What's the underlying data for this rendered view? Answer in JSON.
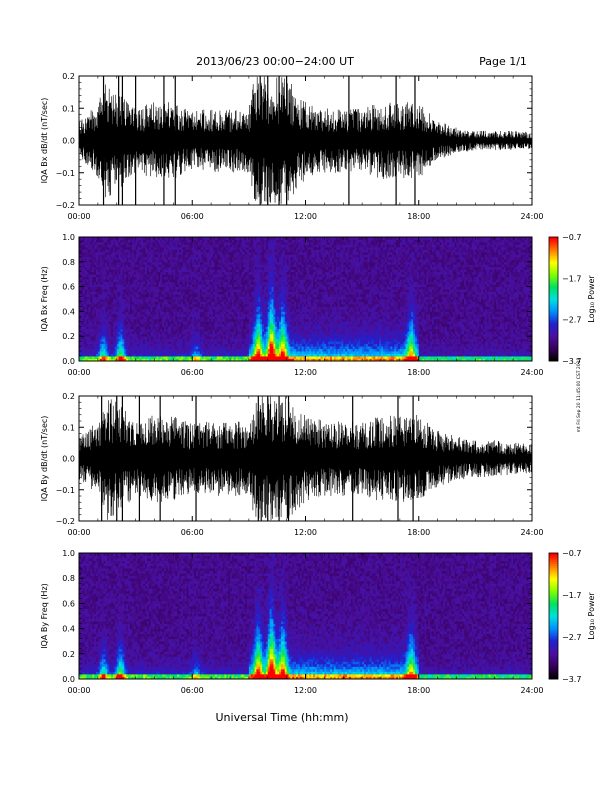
{
  "header": {
    "title": "2013/06/23  00:00−24:00 UT",
    "page_label": "Page 1/1"
  },
  "footer": {
    "xlabel": "Universal Time (hh:mm)",
    "side_stamp": "mt Fri Sep 20 11:45:00 CST 2019"
  },
  "colors": {
    "trace": "#000000",
    "background": "#ffffff",
    "spectrogram_colormap": [
      "#000000",
      "#3a0060",
      "#4a10a0",
      "#2020d0",
      "#0090ff",
      "#00e0e0",
      "#00e060",
      "#80ff00",
      "#ffff00",
      "#ff8000",
      "#ff0000"
    ]
  },
  "chart_data": [
    {
      "type": "line",
      "id": "bx-dbdt",
      "ylabel": "IQA Bx dB/dt (nT/sec)",
      "xlim": [
        0,
        24
      ],
      "ylim": [
        -0.2,
        0.2
      ],
      "xticks": [
        "00:00",
        "06:00",
        "12:00",
        "18:00",
        "24:00"
      ],
      "yticks": [
        "−0.2",
        "−0.1",
        "0.0",
        "0.1",
        "0.2"
      ],
      "envelope": {
        "x": [
          0,
          1,
          1.5,
          2,
          3,
          4,
          5,
          6,
          7,
          8,
          9,
          9.3,
          10,
          11,
          12,
          13,
          14,
          15,
          16,
          17,
          18,
          19,
          20,
          21,
          22,
          23,
          24
        ],
        "amplitude": [
          0.06,
          0.12,
          0.2,
          0.16,
          0.1,
          0.12,
          0.12,
          0.09,
          0.1,
          0.1,
          0.1,
          0.2,
          0.2,
          0.2,
          0.12,
          0.1,
          0.1,
          0.1,
          0.12,
          0.12,
          0.12,
          0.06,
          0.04,
          0.03,
          0.03,
          0.03,
          0.025
        ]
      },
      "spikes_x": [
        1.3,
        2.1,
        2.3,
        3.0,
        4.5,
        5.1,
        9.6,
        10.0,
        10.6,
        11.0,
        14.3,
        16.8,
        17.8
      ]
    },
    {
      "type": "heatmap",
      "id": "bx-freq",
      "ylabel": "IQA Bx Freq (Hz)",
      "xlim": [
        0,
        24
      ],
      "ylim": [
        0,
        1.0
      ],
      "xticks": [
        "00:00",
        "06:00",
        "12:00",
        "18:00",
        "24:00"
      ],
      "yticks": [
        "0.0",
        "0.2",
        "0.4",
        "0.6",
        "0.8",
        "1.0"
      ],
      "colorbar": {
        "label": "Log₁₀ Power",
        "min": -3.7,
        "max": -0.7,
        "ticks": [
          "−0.7",
          "−1.7",
          "−2.7",
          "−3.7"
        ]
      }
    },
    {
      "type": "line",
      "id": "by-dbdt",
      "ylabel": "IQA By dB/dt (nT/sec)",
      "xlim": [
        0,
        24
      ],
      "ylim": [
        -0.2,
        0.2
      ],
      "xticks": [
        "00:00",
        "06:00",
        "12:00",
        "18:00",
        "24:00"
      ],
      "yticks": [
        "−0.2",
        "−0.1",
        "0.0",
        "0.1",
        "0.2"
      ],
      "envelope": {
        "x": [
          0,
          1,
          1.5,
          2,
          3,
          4,
          5,
          6,
          7,
          8,
          9,
          9.3,
          10,
          11,
          12,
          13,
          14,
          15,
          16,
          17,
          18,
          19,
          20,
          21,
          22,
          23,
          24
        ],
        "amplitude": [
          0.07,
          0.12,
          0.2,
          0.18,
          0.12,
          0.14,
          0.14,
          0.11,
          0.12,
          0.12,
          0.12,
          0.2,
          0.2,
          0.2,
          0.14,
          0.12,
          0.12,
          0.12,
          0.14,
          0.14,
          0.14,
          0.09,
          0.07,
          0.06,
          0.06,
          0.05,
          0.05
        ]
      },
      "spikes_x": [
        1.2,
        2.0,
        2.3,
        3.2,
        4.3,
        6.2,
        9.5,
        10.0,
        10.6,
        11.1,
        14.5,
        16.9,
        17.7
      ]
    },
    {
      "type": "heatmap",
      "id": "by-freq",
      "ylabel": "IQA By Freq (Hz)",
      "xlim": [
        0,
        24
      ],
      "ylim": [
        0,
        1.0
      ],
      "xticks": [
        "00:00",
        "06:00",
        "12:00",
        "18:00",
        "24:00"
      ],
      "yticks": [
        "0.0",
        "0.2",
        "0.4",
        "0.6",
        "0.8",
        "1.0"
      ],
      "colorbar": {
        "label": "Log₁₀ Power",
        "min": -3.7,
        "max": -0.7,
        "ticks": [
          "−0.7",
          "−1.7",
          "−2.7",
          "−3.7"
        ]
      }
    }
  ]
}
